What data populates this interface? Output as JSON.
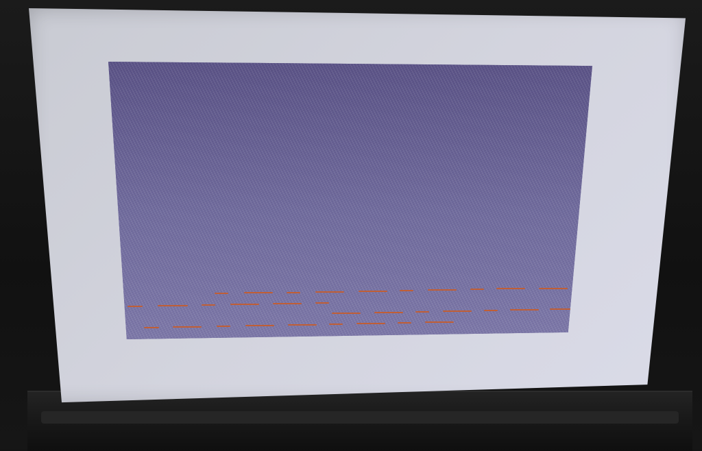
{
  "device": {
    "screen_background": "#d3d4de",
    "viewport_color": "#6d6797",
    "dash_color": "#c05e35"
  }
}
